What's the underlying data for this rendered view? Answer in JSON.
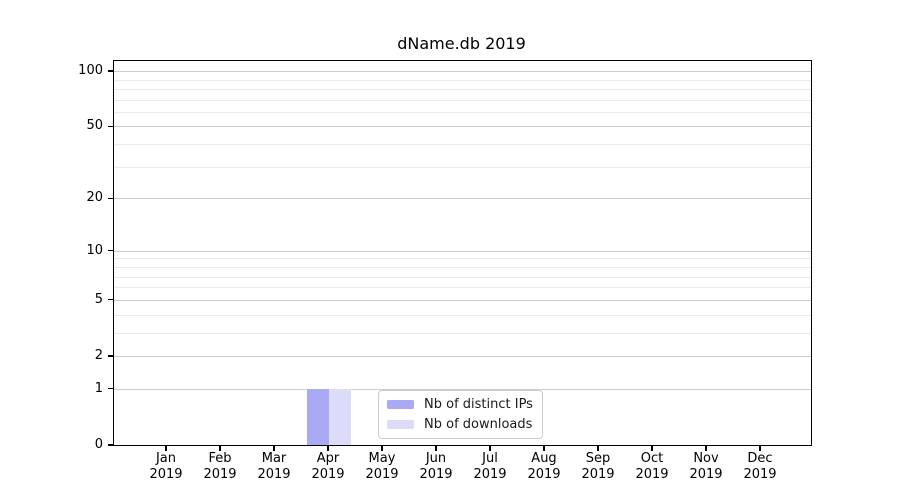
{
  "chart_data": {
    "type": "bar",
    "title": "dName.db 2019",
    "categories_month": [
      "Jan",
      "Feb",
      "Mar",
      "Apr",
      "May",
      "Jun",
      "Jul",
      "Aug",
      "Sep",
      "Oct",
      "Nov",
      "Dec"
    ],
    "categories_year": "2019",
    "series": [
      {
        "name": "Nb of distinct IPs",
        "color": "#a9a9f4",
        "values": [
          0,
          0,
          0,
          1,
          0,
          0,
          0,
          0,
          0,
          0,
          0,
          0
        ]
      },
      {
        "name": "Nb of downloads",
        "color": "#dcdcf8",
        "values": [
          0,
          0,
          0,
          1,
          0,
          0,
          0,
          0,
          0,
          0,
          0,
          0
        ]
      }
    ],
    "y_axis": {
      "scale": "log1p",
      "major_ticks": [
        0,
        1,
        2,
        5,
        10,
        20,
        50,
        100
      ],
      "minor_ticks": [
        3,
        4,
        6,
        7,
        8,
        9,
        30,
        40,
        60,
        70,
        80,
        90
      ],
      "ylim": [
        0,
        113.3
      ]
    },
    "legend": {
      "position": "lower center"
    },
    "grid": true,
    "colors": {
      "major_grid": "#cccccc",
      "minor_grid": "#eaeaea",
      "spine": "#000000",
      "background": "#ffffff"
    }
  }
}
